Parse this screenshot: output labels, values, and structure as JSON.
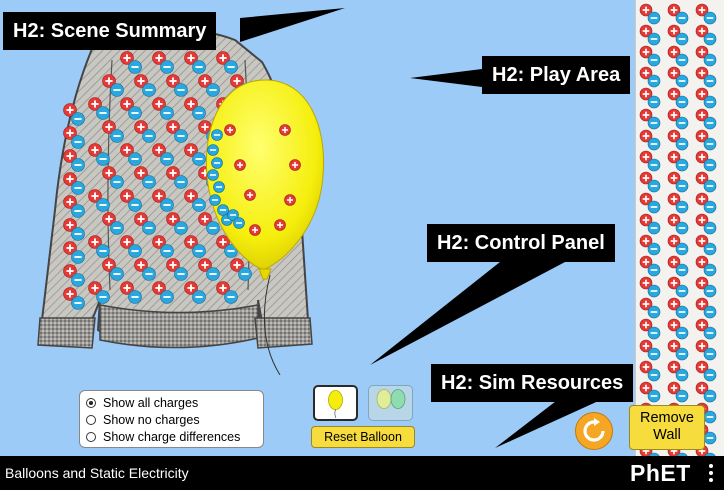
{
  "callouts": {
    "scene_summary": "H2: Scene Summary",
    "play_area": "H2: Play Area",
    "control_panel": "H2: Control Panel",
    "sim_resources": "H2: Sim Resources"
  },
  "charge_options": {
    "selected_index": 0,
    "items": [
      {
        "label": "Show all charges"
      },
      {
        "label": "Show no charges"
      },
      {
        "label": "Show charge differences"
      }
    ]
  },
  "balloon_controls": {
    "reset_label": "Reset Balloon",
    "one_balloon_icon": "single-balloon-icon",
    "two_balloons_icon": "two-balloons-icon"
  },
  "wall_control": {
    "label_line1": "Remove",
    "label_line2": "Wall"
  },
  "reset_all_icon": "refresh-icon",
  "nav": {
    "title": "Balloons and Static Electricity",
    "logo_text": "PhET",
    "menu_icon": "kebab-menu-icon"
  },
  "colors": {
    "background": "#9ccbf8",
    "positive_charge": "#e53935",
    "negative_charge": "#29a8e0",
    "balloon": "#f5f10c",
    "button_yellow": "#f6dc3d",
    "reset_orange": "#f5a623"
  }
}
